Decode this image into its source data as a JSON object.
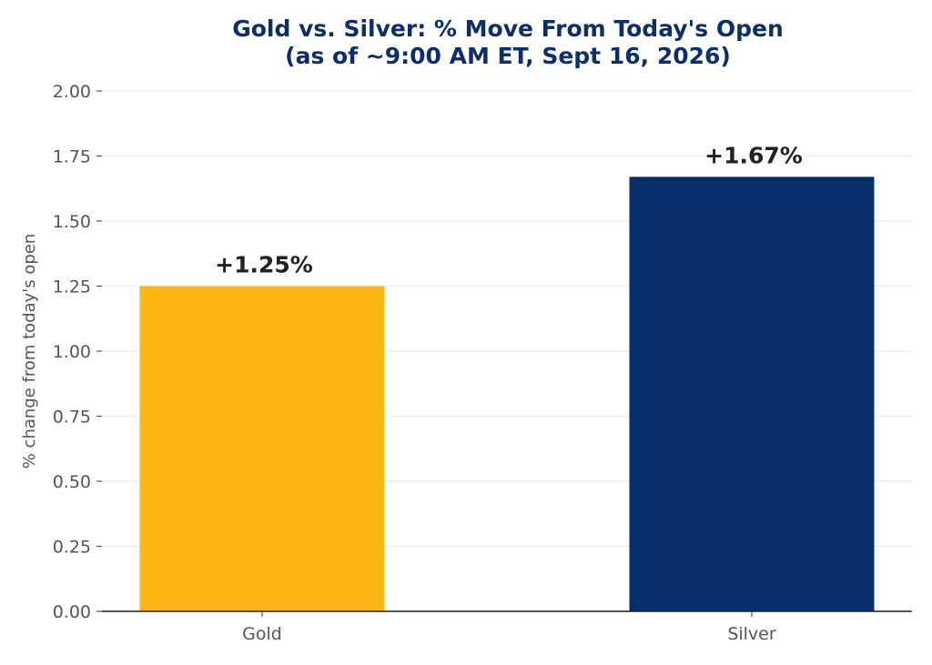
{
  "chart_data": {
    "type": "bar",
    "title": "Gold vs. Silver: % Move From Today's Open",
    "subtitle": "(as of ~9:00 AM ET, Sept 16, 2026)",
    "xlabel": "",
    "ylabel": "% change from today's open",
    "categories": [
      "Gold",
      "Silver"
    ],
    "values": [
      1.25,
      1.67
    ],
    "data_labels": [
      "+1.25%",
      "+1.67%"
    ],
    "colors": [
      "#FBB718",
      "#072D6A"
    ],
    "ylim": [
      0,
      2.0
    ],
    "yticks": [
      0.0,
      0.25,
      0.5,
      0.75,
      1.0,
      1.25,
      1.5,
      1.75,
      2.0
    ],
    "ytick_labels": [
      "0.00",
      "0.25",
      "0.50",
      "0.75",
      "1.00",
      "1.25",
      "1.50",
      "1.75",
      "2.00"
    ],
    "grid": "horizontal",
    "legend": "none"
  },
  "style": {
    "title_color": "#0B2F6B",
    "tick_color": "#555555",
    "grid_color": "#ECECEC",
    "axis_color": "#222222",
    "value_label_color": "#222222"
  }
}
